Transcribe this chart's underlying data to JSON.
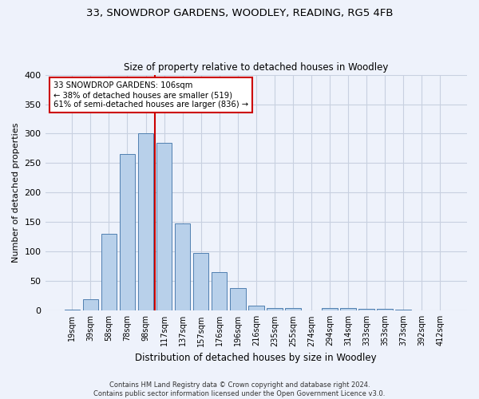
{
  "title_line1": "33, SNOWDROP GARDENS, WOODLEY, READING, RG5 4FB",
  "title_line2": "Size of property relative to detached houses in Woodley",
  "xlabel": "Distribution of detached houses by size in Woodley",
  "ylabel": "Number of detached properties",
  "categories": [
    "19sqm",
    "39sqm",
    "58sqm",
    "78sqm",
    "98sqm",
    "117sqm",
    "137sqm",
    "157sqm",
    "176sqm",
    "196sqm",
    "216sqm",
    "235sqm",
    "255sqm",
    "274sqm",
    "294sqm",
    "314sqm",
    "333sqm",
    "353sqm",
    "373sqm",
    "392sqm",
    "412sqm"
  ],
  "values": [
    2,
    20,
    130,
    265,
    300,
    285,
    148,
    98,
    65,
    38,
    8,
    5,
    4,
    0,
    4,
    4,
    3,
    3,
    2,
    0,
    1
  ],
  "bar_color": "#b8d0ea",
  "bar_edge_color": "#5080b0",
  "marker_line_color": "#cc0000",
  "annotation_line1": "33 SNOWDROP GARDENS: 106sqm",
  "annotation_line2": "← 38% of detached houses are smaller (519)",
  "annotation_line3": "61% of semi-detached houses are larger (836) →",
  "annotation_box_facecolor": "#ffffff",
  "annotation_box_edgecolor": "#cc0000",
  "ylim": [
    0,
    400
  ],
  "yticks": [
    0,
    50,
    100,
    150,
    200,
    250,
    300,
    350,
    400
  ],
  "footnote1": "Contains HM Land Registry data © Crown copyright and database right 2024.",
  "footnote2": "Contains public sector information licensed under the Open Government Licence v3.0.",
  "background_color": "#eef2fb",
  "grid_color": "#c8d0e0"
}
